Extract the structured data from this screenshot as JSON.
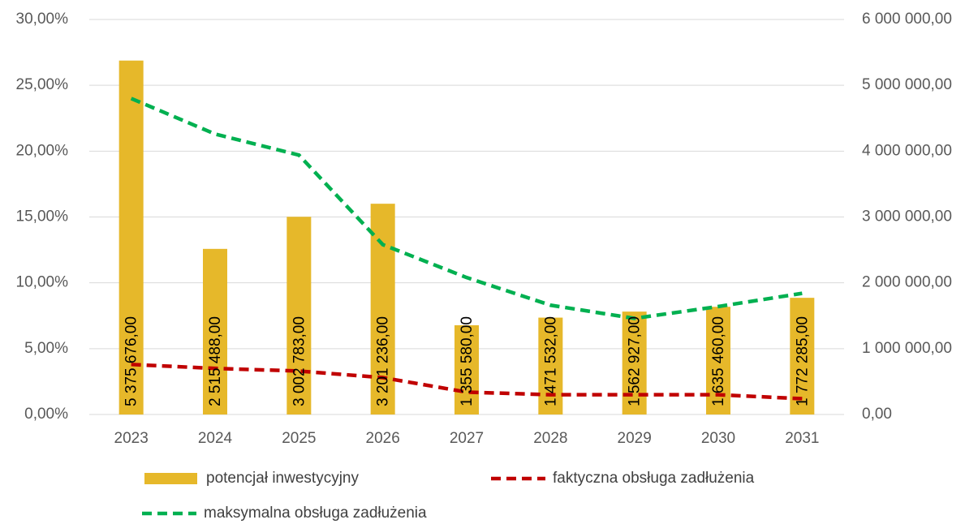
{
  "chart_data": {
    "type": "bar_line",
    "categories": [
      "2023",
      "2024",
      "2025",
      "2026",
      "2027",
      "2028",
      "2029",
      "2030",
      "2031"
    ],
    "series": [
      {
        "name": "potencjał inwestycyjny",
        "type": "bar",
        "axis": "y2",
        "color": "#e6b82a",
        "values": [
          5375676,
          2515488,
          3002783,
          3201236,
          1355580,
          1471532,
          1562927,
          1635460,
          1772285
        ],
        "value_labels": [
          "5 375 676,00",
          "2 515 488,00",
          "3 002 783,00",
          "3 201 236,00",
          "1 355 580,00",
          "1 471 532,00",
          "1 562 927,00",
          "1 635 460,00",
          "1 772 285,00"
        ]
      },
      {
        "name": "faktyczna obsługa zadłużenia",
        "type": "line",
        "axis": "y",
        "color": "#c00000",
        "values": [
          3.8,
          3.5,
          3.3,
          2.8,
          1.7,
          1.5,
          1.5,
          1.5,
          1.2
        ]
      },
      {
        "name": "maksymalna obsługa zadłużenia",
        "type": "line",
        "axis": "y",
        "color": "#00b050",
        "values": [
          24.0,
          21.3,
          19.7,
          12.9,
          10.4,
          8.3,
          7.3,
          8.2,
          9.2
        ]
      }
    ],
    "ylim": [
      0,
      30
    ],
    "yticks": [
      {
        "value": 0,
        "label": "0,00%"
      },
      {
        "value": 5,
        "label": "5,00%"
      },
      {
        "value": 10,
        "label": "10,00%"
      },
      {
        "value": 15,
        "label": "15,00%"
      },
      {
        "value": 20,
        "label": "20,00%"
      },
      {
        "value": 25,
        "label": "25,00%"
      },
      {
        "value": 30,
        "label": "30,00%"
      }
    ],
    "y2lim": [
      0,
      6000000
    ],
    "y2ticks": [
      {
        "value": 0,
        "label": "0,00"
      },
      {
        "value": 1000000,
        "label": "1 000 000,00"
      },
      {
        "value": 2000000,
        "label": "2 000 000,00"
      },
      {
        "value": 3000000,
        "label": "3 000 000,00"
      },
      {
        "value": 4000000,
        "label": "4 000 000,00"
      },
      {
        "value": 5000000,
        "label": "5 000 000,00"
      },
      {
        "value": 6000000,
        "label": "6 000 000,00"
      }
    ],
    "grid": true,
    "legend": "bottom"
  }
}
